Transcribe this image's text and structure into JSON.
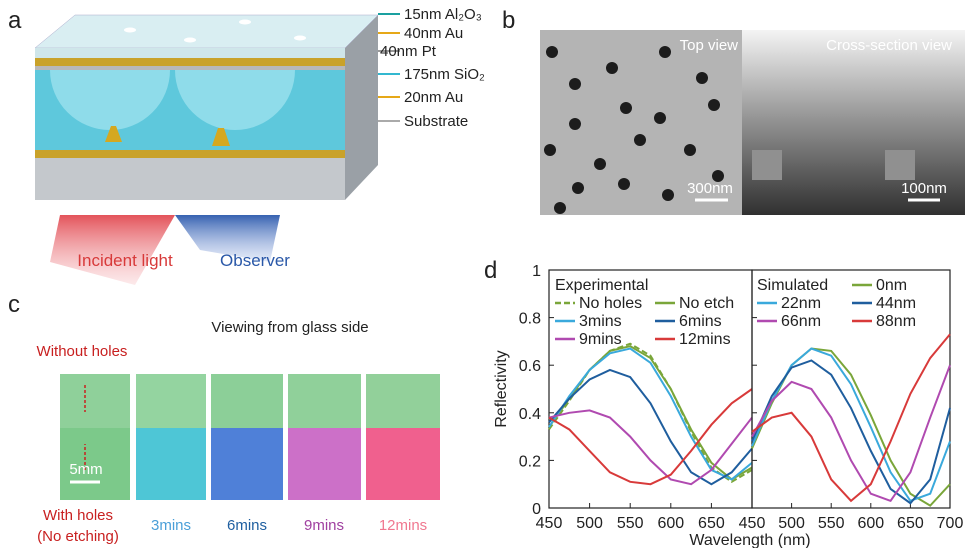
{
  "panel_labels": [
    "a",
    "b",
    "c",
    "d"
  ],
  "panel_a": {
    "layers": [
      "15nm Al₂O₃",
      "40nm Au",
      "40nm Pt",
      "175nm SiO₂",
      "20nm Au",
      "Substrate"
    ],
    "incident": "Incident light",
    "observer": "Observer"
  },
  "panel_b": {
    "top_view": "Top view",
    "cross_section": "Cross-section view",
    "scale_top": "300nm",
    "scale_cross": "100nm"
  },
  "panel_c": {
    "title": "Viewing from glass side",
    "without_holes": "Without holes",
    "with_holes": [
      "With holes",
      "(No etching)"
    ],
    "scale": "5mm",
    "samples": [
      "3mins",
      "6mins",
      "9mins",
      "12mins"
    ]
  },
  "chart_data": [
    {
      "type": "line",
      "legend_title": "Experimental",
      "y_label": "Reflectivity",
      "x": [
        450,
        475,
        500,
        525,
        550,
        575,
        600,
        625,
        650,
        675,
        700
      ],
      "xlim": [
        450,
        700
      ],
      "xticks": [
        450,
        500,
        550,
        600,
        650
      ],
      "ylim": [
        0,
        1
      ],
      "yticks": [
        0,
        0.2,
        0.4,
        0.6,
        0.8,
        1
      ],
      "series": [
        {
          "name": "No holes",
          "color": "#7aa63a",
          "dash": true,
          "values": [
            0.33,
            0.45,
            0.58,
            0.66,
            0.69,
            0.64,
            0.5,
            0.32,
            0.17,
            0.11,
            0.16
          ]
        },
        {
          "name": "No etch",
          "color": "#7aa63a",
          "values": [
            0.34,
            0.46,
            0.58,
            0.66,
            0.68,
            0.63,
            0.5,
            0.33,
            0.19,
            0.12,
            0.17
          ]
        },
        {
          "name": "3mins",
          "color": "#3aa9dc",
          "values": [
            0.34,
            0.47,
            0.58,
            0.65,
            0.67,
            0.61,
            0.47,
            0.3,
            0.16,
            0.12,
            0.19
          ]
        },
        {
          "name": "6mins",
          "color": "#1f5e9e",
          "values": [
            0.36,
            0.46,
            0.54,
            0.58,
            0.55,
            0.44,
            0.28,
            0.15,
            0.1,
            0.15,
            0.25
          ]
        },
        {
          "name": "9mins",
          "color": "#b04ab0",
          "values": [
            0.38,
            0.4,
            0.41,
            0.38,
            0.3,
            0.2,
            0.12,
            0.1,
            0.16,
            0.27,
            0.38
          ]
        },
        {
          "name": "12mins",
          "color": "#d83a3a",
          "values": [
            0.38,
            0.33,
            0.24,
            0.15,
            0.11,
            0.1,
            0.14,
            0.24,
            0.35,
            0.44,
            0.5
          ]
        }
      ]
    },
    {
      "type": "line",
      "legend_title": "Simulated",
      "x_label": "Wavelength (nm)",
      "x": [
        450,
        475,
        500,
        525,
        550,
        575,
        600,
        625,
        650,
        675,
        700
      ],
      "xlim": [
        450,
        700
      ],
      "xticks": [
        450,
        500,
        550,
        600,
        650,
        700
      ],
      "ylim": [
        0,
        1
      ],
      "yticks": [
        0,
        0.2,
        0.4,
        0.6,
        0.8,
        1
      ],
      "series": [
        {
          "name": "0nm",
          "color": "#7aa63a",
          "values": [
            0.25,
            0.44,
            0.6,
            0.67,
            0.66,
            0.56,
            0.39,
            0.2,
            0.06,
            0.01,
            0.1
          ]
        },
        {
          "name": "22nm",
          "color": "#3aa9dc",
          "values": [
            0.26,
            0.45,
            0.6,
            0.67,
            0.64,
            0.52,
            0.34,
            0.15,
            0.03,
            0.06,
            0.28
          ]
        },
        {
          "name": "44nm",
          "color": "#1f5e9e",
          "values": [
            0.28,
            0.47,
            0.59,
            0.62,
            0.56,
            0.42,
            0.24,
            0.08,
            0.02,
            0.12,
            0.42
          ]
        },
        {
          "name": "66nm",
          "color": "#b04ab0",
          "values": [
            0.3,
            0.45,
            0.53,
            0.5,
            0.38,
            0.2,
            0.06,
            0.03,
            0.15,
            0.38,
            0.6
          ]
        },
        {
          "name": "88nm",
          "color": "#d83a3a",
          "values": [
            0.32,
            0.38,
            0.4,
            0.3,
            0.12,
            0.03,
            0.1,
            0.28,
            0.48,
            0.63,
            0.73
          ]
        }
      ]
    }
  ]
}
